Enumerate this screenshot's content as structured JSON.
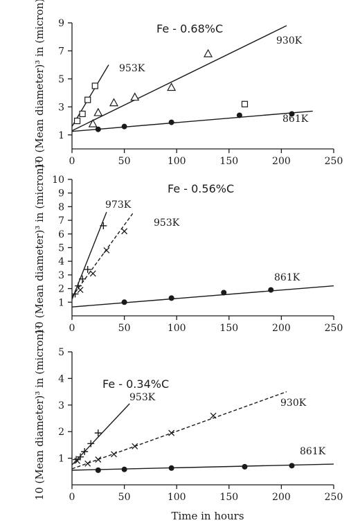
{
  "chart_data": [
    {
      "type": "scatter",
      "title": "Fe - 0.68%C",
      "ylabel": "10 (Mean diameter)³ in (micron)³",
      "xlim": [
        0,
        250
      ],
      "ylim": [
        0,
        9
      ],
      "xticks": [
        "0",
        "50",
        "100",
        "150",
        "200",
        "250"
      ],
      "yticks": [
        "1",
        "3",
        "5",
        "7",
        "9"
      ],
      "series": [
        {
          "name": "953K",
          "marker": "square",
          "x": [
            5,
            10,
            15,
            22,
            165
          ],
          "y": [
            2.0,
            2.5,
            3.5,
            4.5,
            3.2
          ],
          "fit": [
            [
              0,
              1.6
            ],
            [
              35,
              6.0
            ]
          ]
        },
        {
          "name": "930K",
          "marker": "triangle",
          "x": [
            20,
            25,
            40,
            60,
            95,
            130
          ],
          "y": [
            1.8,
            2.6,
            3.3,
            3.7,
            4.4,
            6.8
          ],
          "fit": [
            [
              0,
              1.3
            ],
            [
              205,
              8.8
            ]
          ]
        },
        {
          "name": "861K",
          "marker": "circle",
          "x": [
            25,
            50,
            95,
            160,
            210
          ],
          "y": [
            1.4,
            1.6,
            1.9,
            2.4,
            2.5
          ],
          "fit": [
            [
              0,
              1.25
            ],
            [
              230,
              2.7
            ]
          ]
        }
      ]
    },
    {
      "type": "scatter",
      "title": "Fe - 0.56%C",
      "ylabel": "10 (Mean diameter)³ in (micron)³",
      "xlim": [
        0,
        250
      ],
      "ylim": [
        0,
        10
      ],
      "xticks": [
        "0",
        "50",
        "100",
        "150",
        "200",
        "250"
      ],
      "yticks": [
        "1",
        "2",
        "3",
        "4",
        "5",
        "6",
        "7",
        "8",
        "9",
        "10"
      ],
      "series": [
        {
          "name": "973K",
          "marker": "plus",
          "x": [
            3,
            6,
            10,
            15,
            30
          ],
          "y": [
            1.6,
            2.2,
            2.7,
            3.4,
            6.6
          ],
          "fit": [
            [
              0,
              1.2
            ],
            [
              33,
              7.6
            ]
          ]
        },
        {
          "name": "953K",
          "marker": "cross",
          "x": [
            8,
            20,
            33,
            50
          ],
          "y": [
            1.9,
            3.1,
            4.8,
            6.2
          ],
          "fit": [
            [
              0,
              1.4
            ],
            [
              58,
              7.5
            ]
          ]
        },
        {
          "name": "861K",
          "marker": "circle",
          "x": [
            50,
            95,
            145,
            190
          ],
          "y": [
            1.0,
            1.3,
            1.7,
            1.9
          ],
          "fit": [
            [
              0,
              0.65
            ],
            [
              250,
              2.2
            ]
          ]
        }
      ]
    },
    {
      "type": "scatter",
      "title": "Fe - 0.34%C",
      "ylabel": "10 (Mean diameter)³ in (micron)³",
      "xlabel": "Time in hours",
      "xlim": [
        0,
        250
      ],
      "ylim": [
        0,
        5
      ],
      "xticks": [
        "0",
        "50",
        "100",
        "150",
        "200",
        "250"
      ],
      "yticks": [
        "1",
        "2",
        "3",
        "4",
        "5"
      ],
      "series": [
        {
          "name": "953K",
          "marker": "plus",
          "x": [
            4,
            8,
            12,
            18,
            25
          ],
          "y": [
            0.95,
            1.05,
            1.25,
            1.55,
            1.95
          ],
          "fit": [
            [
              0,
              0.75
            ],
            [
              55,
              3.05
            ]
          ]
        },
        {
          "name": "930K",
          "marker": "cross",
          "x": [
            5,
            15,
            25,
            40,
            60,
            95,
            135
          ],
          "y": [
            0.9,
            0.8,
            0.95,
            1.15,
            1.45,
            1.95,
            2.6
          ],
          "fit": [
            [
              0,
              0.6
            ],
            [
              205,
              3.5
            ]
          ]
        },
        {
          "name": "861K",
          "marker": "circle",
          "x": [
            25,
            50,
            95,
            165,
            210
          ],
          "y": [
            0.55,
            0.58,
            0.63,
            0.68,
            0.72
          ],
          "fit": [
            [
              0,
              0.55
            ],
            [
              250,
              0.78
            ]
          ]
        }
      ]
    }
  ],
  "annotations": {
    "panel1": {
      "label_953": "953K",
      "label_930": "930K",
      "label_861": "861K"
    },
    "panel2": {
      "label_973": "973K",
      "label_953": "953K",
      "label_861": "861K"
    },
    "panel3": {
      "label_953": "953K",
      "label_930": "930K",
      "label_861": "861K"
    }
  }
}
